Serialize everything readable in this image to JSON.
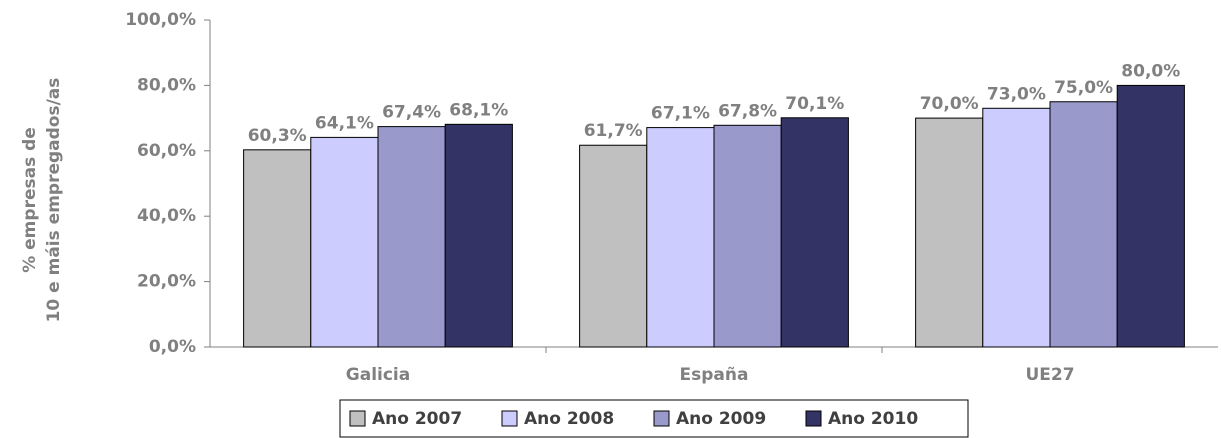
{
  "chart_data": {
    "type": "bar",
    "ylabel": [
      "% empresas de",
      "10 e máis empregados/as"
    ],
    "categories": [
      "Galicia",
      "España",
      "UE27"
    ],
    "series": [
      {
        "name": "Ano 2007",
        "color": "#c0c0c0",
        "values": [
          60.3,
          61.7,
          70.0
        ],
        "value_labels": [
          "60,3%",
          "61,7%",
          "70,0%"
        ]
      },
      {
        "name": "Ano 2008",
        "color": "#ccccff",
        "values": [
          64.1,
          67.1,
          73.0
        ],
        "value_labels": [
          "64,1%",
          "67,1%",
          "73,0%"
        ]
      },
      {
        "name": "Ano 2009",
        "color": "#9999cc",
        "values": [
          67.4,
          67.8,
          75.0
        ],
        "value_labels": [
          "67,4%",
          "67,8%",
          "75,0%"
        ]
      },
      {
        "name": "Ano 2010",
        "color": "#333366",
        "values": [
          68.1,
          70.1,
          80.0
        ],
        "value_labels": [
          "68,1%",
          "70,1%",
          "80,0%"
        ]
      }
    ],
    "ylim": [
      0,
      100
    ],
    "yticks": [
      {
        "value": 0,
        "label": "0,0%"
      },
      {
        "value": 20,
        "label": "20,0%"
      },
      {
        "value": 40,
        "label": "40,0%"
      },
      {
        "value": 60,
        "label": "60,0%"
      },
      {
        "value": 80,
        "label": "80,0%"
      },
      {
        "value": 100,
        "label": "100,0%"
      }
    ],
    "legend": "bottom"
  }
}
